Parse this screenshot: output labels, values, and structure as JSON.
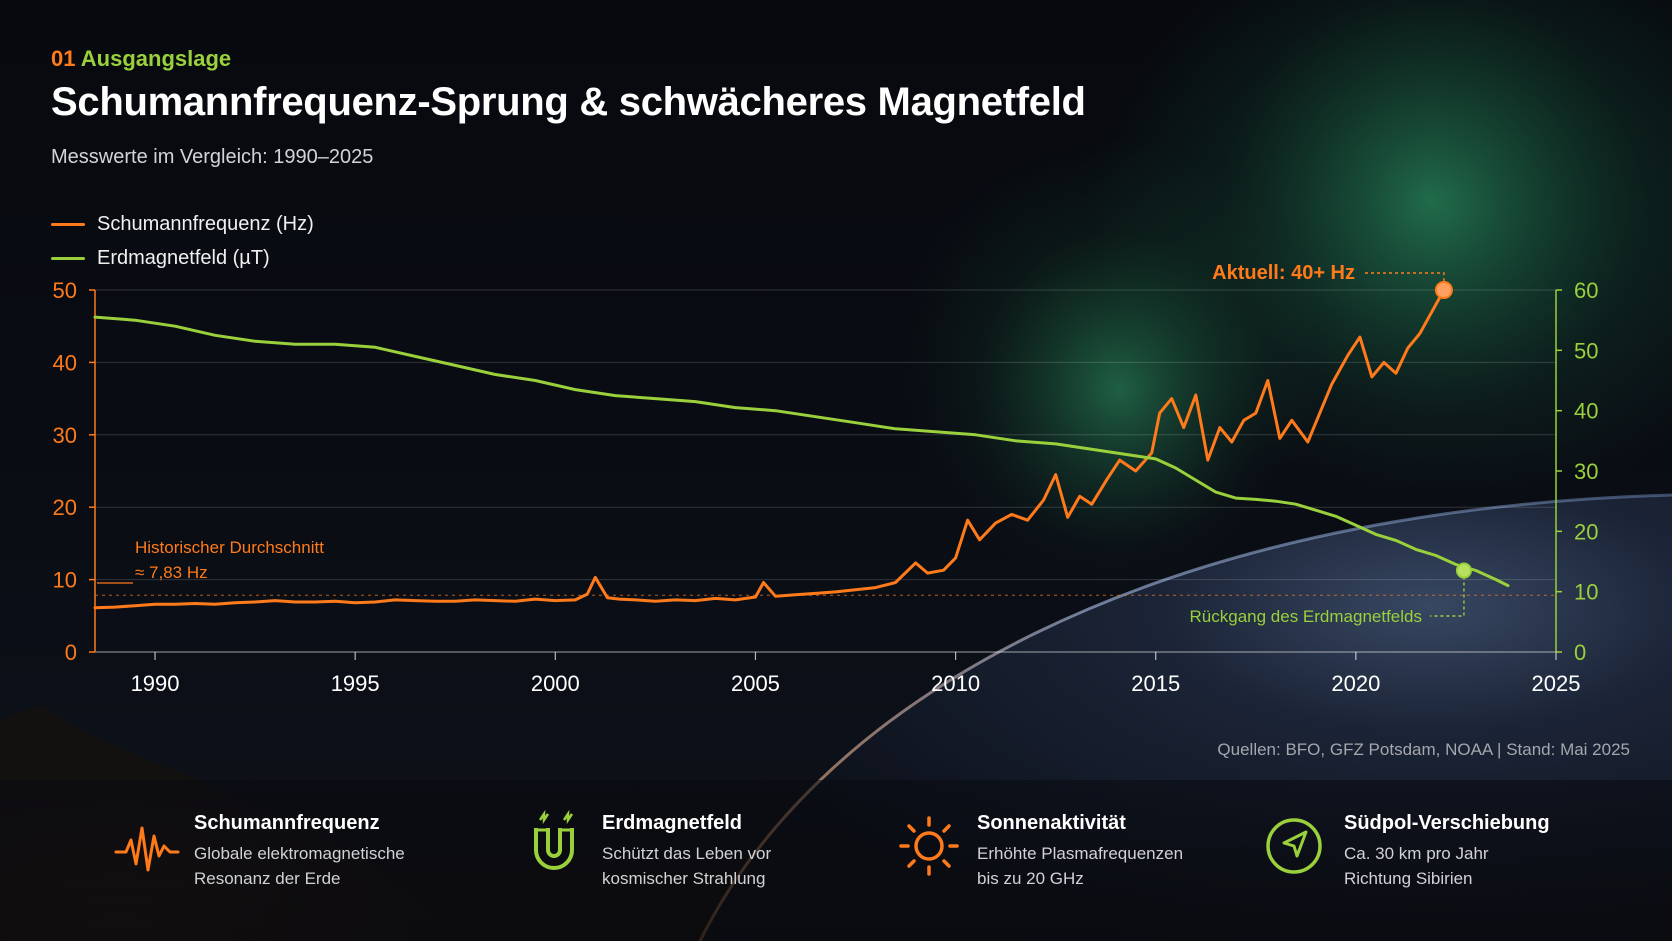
{
  "header": {
    "kicker_num": "01",
    "kicker_text": "Ausgangslage",
    "title": "Schumannfrequenz-Sprung & schwächeres Magnetfeld",
    "subtitle": "Messwerte im Vergleich: 1990–2025"
  },
  "colors": {
    "orange": "#ff7a1a",
    "green": "#9ad03c"
  },
  "chart_data": {
    "type": "line",
    "x_ticks": [
      "1990",
      "1995",
      "2000",
      "2005",
      "2010",
      "2015",
      "2020",
      "2025"
    ],
    "xlim": [
      1988.5,
      2025
    ],
    "y_left": {
      "ticks": [
        "0",
        "10",
        "20",
        "30",
        "40",
        "50"
      ],
      "lim": [
        0,
        50
      ]
    },
    "y_right": {
      "ticks": [
        "0",
        "10",
        "20",
        "30",
        "40",
        "50",
        "60"
      ],
      "lim": [
        0,
        60
      ]
    },
    "grid": true,
    "legend_position": "top-left",
    "series": [
      {
        "name": "Schumannfrequenz (Hz)",
        "axis": "left",
        "color": "#ff7a1a",
        "x": [
          1988.5,
          1989,
          1989.5,
          1990,
          1990.5,
          1991,
          1991.5,
          1992,
          1992.5,
          1993,
          1993.5,
          1994,
          1994.5,
          1995,
          1995.5,
          1996,
          1996.5,
          1997,
          1997.5,
          1998,
          1998.5,
          1999,
          1999.5,
          2000,
          2000.5,
          2000.8,
          2001,
          2001.3,
          2001.6,
          2002,
          2002.5,
          2003,
          2003.5,
          2004,
          2004.5,
          2005,
          2005.2,
          2005.5,
          2006,
          2006.5,
          2007,
          2007.5,
          2008,
          2008.5,
          2009,
          2009.3,
          2009.7,
          2010,
          2010.3,
          2010.6,
          2011,
          2011.4,
          2011.8,
          2012.2,
          2012.5,
          2012.8,
          2013.1,
          2013.4,
          2013.8,
          2014.1,
          2014.5,
          2014.9,
          2015.1,
          2015.4,
          2015.7,
          2016,
          2016.3,
          2016.6,
          2016.9,
          2017.2,
          2017.5,
          2017.8,
          2018.1,
          2018.4,
          2018.8,
          2019.1,
          2019.4,
          2019.8,
          2020.1,
          2020.4,
          2020.7,
          2021,
          2021.3,
          2021.6,
          2021.9,
          2022.2
        ],
        "values": [
          6.1,
          6.2,
          6.4,
          6.6,
          6.6,
          6.7,
          6.6,
          6.8,
          6.9,
          7.1,
          6.9,
          6.9,
          7.0,
          6.8,
          6.9,
          7.2,
          7.1,
          7.0,
          7.0,
          7.2,
          7.1,
          7.0,
          7.3,
          7.1,
          7.2,
          8.0,
          10.3,
          7.5,
          7.3,
          7.2,
          7.0,
          7.2,
          7.1,
          7.4,
          7.2,
          7.6,
          9.6,
          7.7,
          7.9,
          8.1,
          8.3,
          8.6,
          8.9,
          9.6,
          12.3,
          10.9,
          11.3,
          13.0,
          18.2,
          15.5,
          17.8,
          19.0,
          18.2,
          21.0,
          24.5,
          18.6,
          21.5,
          20.4,
          24.0,
          26.5,
          25.0,
          27.5,
          33.0,
          35.0,
          31.0,
          35.5,
          26.5,
          31.0,
          29.0,
          32.0,
          33.0,
          37.5,
          29.5,
          32.0,
          29.0,
          33.0,
          37.0,
          41.0,
          43.5,
          38.0,
          40.0,
          38.5,
          42.0,
          44.0,
          47.0,
          50.0
        ]
      },
      {
        "name": "Erdmagnetfeld (µT)",
        "axis": "right",
        "color": "#9ad03c",
        "x": [
          1988.5,
          1989.5,
          1990.5,
          1991.5,
          1992.5,
          1993.5,
          1994.5,
          1995.5,
          1996.5,
          1997.5,
          1998.5,
          1999.5,
          2000.5,
          2001.5,
          2002.5,
          2003.5,
          2004.5,
          2005.5,
          2006.5,
          2007.5,
          2008.5,
          2009.5,
          2010.5,
          2011.5,
          2012.5,
          2013.5,
          2014.5,
          2015,
          2015.5,
          2016,
          2016.5,
          2017,
          2017.5,
          2018,
          2018.5,
          2019,
          2019.5,
          2020,
          2020.5,
          2021,
          2021.5,
          2022,
          2022.5,
          2023,
          2023.5,
          2023.8
        ],
        "values": [
          55.5,
          55.0,
          54.0,
          52.5,
          51.5,
          51.0,
          51.0,
          50.5,
          49.0,
          47.5,
          46.0,
          45.0,
          43.5,
          42.5,
          42.0,
          41.5,
          40.5,
          40.0,
          39.0,
          38.0,
          37.0,
          36.5,
          36.0,
          35.0,
          34.5,
          33.5,
          32.5,
          32.0,
          30.5,
          28.5,
          26.5,
          25.5,
          25.3,
          25.0,
          24.5,
          23.5,
          22.5,
          21.0,
          19.5,
          18.5,
          17.0,
          16.0,
          14.5,
          13.5,
          12.0,
          11.0
        ]
      }
    ],
    "reference_line": {
      "value": 7.83,
      "axis": "left"
    },
    "annotations": {
      "current_label": "Aktuell: 40+ Hz",
      "historic_line1": "Historischer Durchschnitt",
      "historic_line2": "≈ 7,83 Hz",
      "decline_label": "Rückgang des Erdmagnetfelds",
      "decline_marker": {
        "x": 2022.7,
        "value": 13.5,
        "axis": "right"
      },
      "current_marker": {
        "x": 2022.2,
        "value": 50.0,
        "axis": "left"
      }
    }
  },
  "source": "Quellen: BFO, GFZ Potsdam, NOAA | Stand: Mai 2025",
  "footer": {
    "cards": [
      {
        "icon": "waveform-icon",
        "title": "Schumannfrequenz",
        "desc": "Globale elektromagnetische\nResonanz der Erde"
      },
      {
        "icon": "magnet-icon",
        "title": "Erdmagnetfeld",
        "desc": "Schützt das Leben vor\nkosmischer Strahlung"
      },
      {
        "icon": "sun-icon",
        "title": "Sonnenaktivität",
        "desc": "Erhöhte Plasmafrequenzen\nbis zu 20 GHz"
      },
      {
        "icon": "navigation-icon",
        "title": "Südpol-Verschiebung",
        "desc": "Ca. 30 km pro Jahr\nRichtung Sibirien"
      }
    ]
  }
}
